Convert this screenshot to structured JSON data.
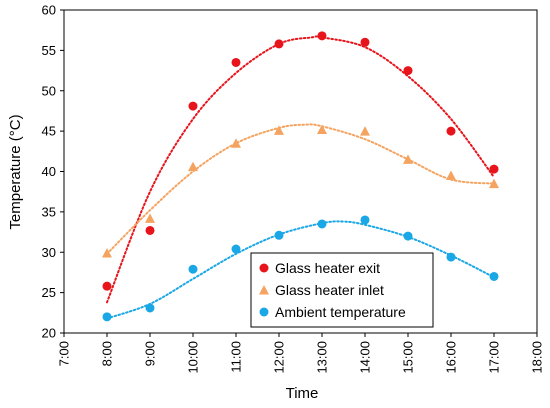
{
  "chart_data": {
    "type": "scatter",
    "xlabel": "Time",
    "ylabel": "Temperature (°C)",
    "x_ticks": [
      "7:00",
      "8:00",
      "9:00",
      "10:00",
      "11:00",
      "12:00",
      "13:00",
      "14:00",
      "15:00",
      "16:00",
      "17:00",
      "18:00"
    ],
    "xlim": [
      7,
      18
    ],
    "ylim": [
      20,
      60
    ],
    "y_ticks": [
      20,
      25,
      30,
      35,
      40,
      45,
      50,
      55,
      60
    ],
    "grid": false,
    "legend_position": "bottom-right",
    "series": [
      {
        "name": "Glass heater exit",
        "marker": "circle",
        "color": "#e8141c",
        "x": [
          8,
          9,
          10,
          11,
          12,
          13,
          14,
          15,
          16,
          17
        ],
        "values": [
          25.8,
          32.7,
          48.1,
          53.5,
          55.8,
          56.8,
          56.0,
          52.5,
          45.0,
          40.3
        ],
        "trend": [
          [
            8,
            23.8
          ],
          [
            9,
            37.5
          ],
          [
            10,
            46.5
          ],
          [
            11,
            52.2
          ],
          [
            12,
            55.8
          ],
          [
            12.75,
            56.6
          ],
          [
            13,
            56.6
          ],
          [
            14,
            55.4
          ],
          [
            15,
            51.8
          ],
          [
            16,
            46.5
          ],
          [
            17,
            39.3
          ]
        ]
      },
      {
        "name": "Glass heater inlet",
        "marker": "triangle",
        "color": "#f4a460",
        "x": [
          8,
          9,
          10,
          11,
          12,
          13,
          14,
          15,
          16,
          17
        ],
        "values": [
          29.9,
          34.2,
          40.6,
          43.5,
          45.1,
          45.2,
          45.0,
          41.5,
          39.5,
          38.5
        ],
        "trend": [
          [
            8,
            29.8
          ],
          [
            9,
            35.2
          ],
          [
            10,
            40.0
          ],
          [
            11,
            43.5
          ],
          [
            12,
            45.4
          ],
          [
            12.6,
            45.8
          ],
          [
            13,
            45.6
          ],
          [
            14,
            44.0
          ],
          [
            15,
            41.5
          ],
          [
            16,
            39.0
          ],
          [
            17,
            38.5
          ]
        ]
      },
      {
        "name": "Ambient temperature",
        "marker": "circle",
        "color": "#1aa7e6",
        "x": [
          8,
          9,
          10,
          11,
          12,
          13,
          14,
          15,
          16,
          17
        ],
        "values": [
          22.0,
          23.1,
          27.9,
          30.4,
          32.1,
          33.5,
          34.0,
          32.0,
          29.4,
          27.0
        ],
        "trend": [
          [
            8,
            21.8
          ],
          [
            9,
            23.6
          ],
          [
            10,
            26.7
          ],
          [
            11,
            29.8
          ],
          [
            12,
            32.2
          ],
          [
            13,
            33.6
          ],
          [
            13.5,
            33.8
          ],
          [
            14,
            33.4
          ],
          [
            15,
            31.9
          ],
          [
            16,
            29.6
          ],
          [
            17,
            26.9
          ]
        ]
      }
    ]
  }
}
